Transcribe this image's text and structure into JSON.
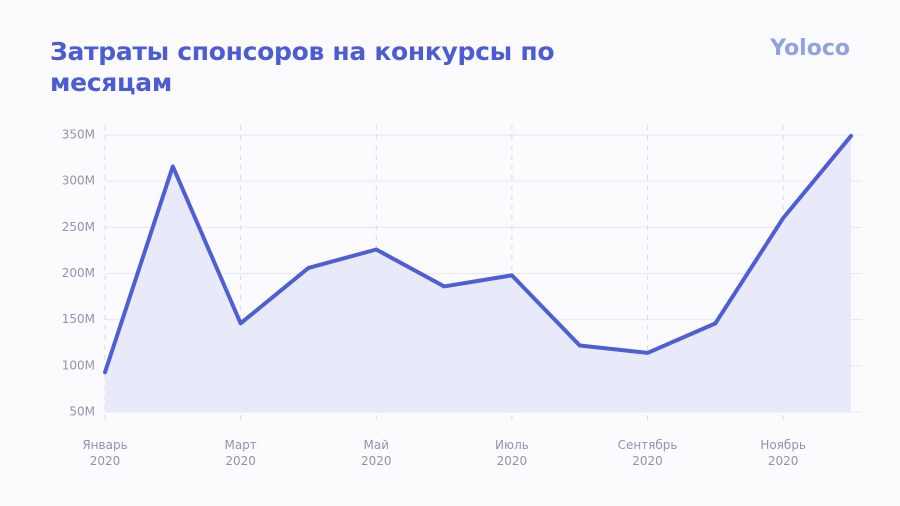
{
  "chart_data": {
    "type": "area",
    "title": "Затраты спонсоров на конкурсы по месяцам",
    "brand": "Yoloco",
    "categories": [
      "Январь 2020",
      null,
      "Март 2020",
      null,
      "Май 2020",
      null,
      "Июль 2020",
      null,
      "Сентябрь 2020",
      null,
      "Ноябрь 2020",
      null
    ],
    "values": [
      93,
      316,
      146,
      206,
      226,
      186,
      198,
      122,
      114,
      146,
      260,
      349
    ],
    "color": "#4e5fd3",
    "fill": "#e8eafa",
    "ylim": [
      50,
      350
    ],
    "yticks": [
      {
        "value": 50,
        "label": "50M"
      },
      {
        "value": 100,
        "label": "100M"
      },
      {
        "value": 150,
        "label": "150M"
      },
      {
        "value": 200,
        "label": "200M"
      },
      {
        "value": 250,
        "label": "250M"
      },
      {
        "value": 300,
        "label": "300M"
      },
      {
        "value": 350,
        "label": "350M"
      }
    ],
    "grid": true
  }
}
